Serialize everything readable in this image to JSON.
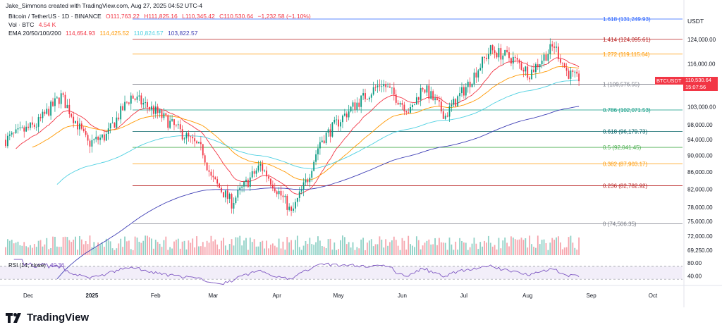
{
  "header": {
    "created_by": "Jake_Simmons created with TradingView.com, Aug 27, 2025 04:52 UTC-4",
    "symbol_line": "Bitcoin / TetherUS · 1D · BINANCE",
    "ohlc": {
      "o": "O111,763.22",
      "h": "H111,825.16",
      "l": "L110,345.42",
      "c": "C110,530.64",
      "chg": "−1,232.58 (−1.10%)"
    },
    "vol_label": "Vol · BTC",
    "vol_value": "4.54 K",
    "ema_label": "EMA 20/50/100/200",
    "ema_values": [
      "114,654.93",
      "114,425.52",
      "110,824.57",
      "103,822.57"
    ],
    "rsi_label": "RSI (14, close)",
    "rsi_value": "40.36"
  },
  "colors": {
    "up": "#089981",
    "down": "#f23645",
    "ema20": "#f23645",
    "ema50": "#ff9800",
    "ema100": "#4dd0e1",
    "ema200": "#3f3fb5",
    "rsi": "#7e57c2"
  },
  "axis": {
    "unit": "USDT",
    "price_ticks": [
      "124,000.00",
      "116,000.00",
      "103,000.00",
      "98,000.00",
      "94,000.00",
      "90,000.00",
      "86,000.00",
      "82,000.00",
      "78,000.00",
      "75,000.00",
      "72,000.00",
      "69,250.00"
    ],
    "rsi_ticks": [
      "80.00",
      "40.00"
    ],
    "time_ticks": [
      "Dec",
      "2025",
      "Feb",
      "Mar",
      "Apr",
      "May",
      "Jun",
      "Jul",
      "Aug",
      "Sep",
      "Oct"
    ]
  },
  "price_tag": {
    "symbol": "BTCUSDT",
    "price": "110,530.64",
    "countdown": "15:07:56"
  },
  "chart_data": {
    "type": "candlestick",
    "series": "BTCUSDT daily",
    "scale": "log",
    "fib_levels": [
      {
        "label": "1.618 (131,249.93)",
        "value": 131249.93,
        "color": "#2962ff"
      },
      {
        "label": "1.414 (124,095.61)",
        "value": 124095.61,
        "color": "#b71c1c"
      },
      {
        "label": "1.272 (119,115.64)",
        "value": 119115.64,
        "color": "#ff9800"
      },
      {
        "label": "1 (109,576.55)",
        "value": 109576.55,
        "color": "#787b86"
      },
      {
        "label": "0.786 (102,071.53)",
        "value": 102071.53,
        "color": "#089981"
      },
      {
        "label": "0.618 (96,179.73)",
        "value": 96179.73,
        "color": "#006064"
      },
      {
        "label": "0.5 (92,041.45)",
        "value": 92041.45,
        "color": "#4caf50"
      },
      {
        "label": "0.382 (87,903.17)",
        "value": 87903.17,
        "color": "#ff9800"
      },
      {
        "label": "0.236 (82,782.92)",
        "value": 82782.92,
        "color": "#b71c1c"
      },
      {
        "label": "0 (74,506.35)",
        "value": 74506.35,
        "color": "#787b86"
      }
    ],
    "anchors": [
      {
        "date": "2024-11-20",
        "close": 94000
      },
      {
        "date": "2024-12-05",
        "close": 98000
      },
      {
        "date": "2024-12-17",
        "close": 106000
      },
      {
        "date": "2024-12-30",
        "close": 93000
      },
      {
        "date": "2025-01-08",
        "close": 95000
      },
      {
        "date": "2025-01-20",
        "close": 106000
      },
      {
        "date": "2025-01-31",
        "close": 102000
      },
      {
        "date": "2025-02-10",
        "close": 97500
      },
      {
        "date": "2025-02-24",
        "close": 91000
      },
      {
        "date": "2025-02-28",
        "close": 84500
      },
      {
        "date": "2025-03-10",
        "close": 79000
      },
      {
        "date": "2025-03-24",
        "close": 87500
      },
      {
        "date": "2025-04-06",
        "close": 78500
      },
      {
        "date": "2025-04-08",
        "close": 76500
      },
      {
        "date": "2025-04-16",
        "close": 84500
      },
      {
        "date": "2025-04-22",
        "close": 93500
      },
      {
        "date": "2025-05-08",
        "close": 103000
      },
      {
        "date": "2025-05-22",
        "close": 110000
      },
      {
        "date": "2025-06-05",
        "close": 101500
      },
      {
        "date": "2025-06-11",
        "close": 109000
      },
      {
        "date": "2025-06-22",
        "close": 100500
      },
      {
        "date": "2025-07-03",
        "close": 109500
      },
      {
        "date": "2025-07-14",
        "close": 120500
      },
      {
        "date": "2025-07-25",
        "close": 117500
      },
      {
        "date": "2025-08-02",
        "close": 113000
      },
      {
        "date": "2025-08-14",
        "close": 122000
      },
      {
        "date": "2025-08-20",
        "close": 113500
      },
      {
        "date": "2025-08-26",
        "close": 110530.64
      }
    ]
  }
}
